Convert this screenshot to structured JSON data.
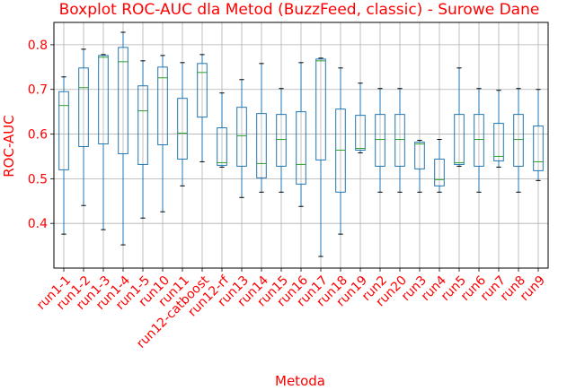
{
  "chart_data": {
    "type": "boxplot",
    "title": "Boxplot ROC-AUC dla Metod (BuzzFeed, classic) - Surowe Dane",
    "xlabel": "Metoda",
    "ylabel": "ROC-AUC",
    "ylim": [
      0.3,
      0.85
    ],
    "yticks": [
      0.4,
      0.5,
      0.6,
      0.7,
      0.8
    ],
    "grid": true,
    "colors": {
      "box": "#1f77b4",
      "median": "#2ca02c",
      "whisker": "#1f77b4",
      "cap": "#000000",
      "text": "#ff0000",
      "grid": "#b0b0b0"
    },
    "categories": [
      "run1-1",
      "run1-2",
      "run1-3",
      "run1-4",
      "run1-5",
      "run10",
      "run11",
      "run12-catboost",
      "run12-rf",
      "run13",
      "run14",
      "run15",
      "run16",
      "run17",
      "run18",
      "run19",
      "run2",
      "run20",
      "run3",
      "run4",
      "run5",
      "run6",
      "run7",
      "run8",
      "run9"
    ],
    "boxes": [
      {
        "whislo": 0.376,
        "q1": 0.52,
        "med": 0.664,
        "q3": 0.695,
        "whishi": 0.728
      },
      {
        "whislo": 0.44,
        "q1": 0.572,
        "med": 0.704,
        "q3": 0.748,
        "whishi": 0.79
      },
      {
        "whislo": 0.386,
        "q1": 0.578,
        "med": 0.772,
        "q3": 0.776,
        "whishi": 0.778
      },
      {
        "whislo": 0.352,
        "q1": 0.556,
        "med": 0.762,
        "q3": 0.794,
        "whishi": 0.828
      },
      {
        "whislo": 0.412,
        "q1": 0.532,
        "med": 0.652,
        "q3": 0.708,
        "whishi": 0.764
      },
      {
        "whislo": 0.426,
        "q1": 0.576,
        "med": 0.726,
        "q3": 0.75,
        "whishi": 0.776
      },
      {
        "whislo": 0.484,
        "q1": 0.544,
        "med": 0.602,
        "q3": 0.68,
        "whishi": 0.76
      },
      {
        "whislo": 0.538,
        "q1": 0.638,
        "med": 0.738,
        "q3": 0.758,
        "whishi": 0.778
      },
      {
        "whislo": 0.526,
        "q1": 0.53,
        "med": 0.536,
        "q3": 0.614,
        "whishi": 0.692
      },
      {
        "whislo": 0.458,
        "q1": 0.528,
        "med": 0.596,
        "q3": 0.66,
        "whishi": 0.722
      },
      {
        "whislo": 0.47,
        "q1": 0.502,
        "med": 0.534,
        "q3": 0.646,
        "whishi": 0.758
      },
      {
        "whislo": 0.47,
        "q1": 0.528,
        "med": 0.588,
        "q3": 0.644,
        "whishi": 0.702
      },
      {
        "whislo": 0.438,
        "q1": 0.488,
        "med": 0.532,
        "q3": 0.65,
        "whishi": 0.76
      },
      {
        "whislo": 0.326,
        "q1": 0.542,
        "med": 0.764,
        "q3": 0.768,
        "whishi": 0.77
      },
      {
        "whislo": 0.376,
        "q1": 0.47,
        "med": 0.564,
        "q3": 0.656,
        "whishi": 0.748
      },
      {
        "whislo": 0.558,
        "q1": 0.564,
        "med": 0.568,
        "q3": 0.642,
        "whishi": 0.714
      },
      {
        "whislo": 0.47,
        "q1": 0.528,
        "med": 0.588,
        "q3": 0.644,
        "whishi": 0.702
      },
      {
        "whislo": 0.47,
        "q1": 0.528,
        "med": 0.588,
        "q3": 0.644,
        "whishi": 0.702
      },
      {
        "whislo": 0.47,
        "q1": 0.522,
        "med": 0.578,
        "q3": 0.582,
        "whishi": 0.586
      },
      {
        "whislo": 0.47,
        "q1": 0.484,
        "med": 0.498,
        "q3": 0.544,
        "whishi": 0.588
      },
      {
        "whislo": 0.528,
        "q1": 0.532,
        "med": 0.536,
        "q3": 0.644,
        "whishi": 0.748
      },
      {
        "whislo": 0.47,
        "q1": 0.528,
        "med": 0.588,
        "q3": 0.644,
        "whishi": 0.702
      },
      {
        "whislo": 0.526,
        "q1": 0.54,
        "med": 0.55,
        "q3": 0.624,
        "whishi": 0.698
      },
      {
        "whislo": 0.47,
        "q1": 0.528,
        "med": 0.588,
        "q3": 0.644,
        "whishi": 0.702
      },
      {
        "whislo": 0.496,
        "q1": 0.518,
        "med": 0.538,
        "q3": 0.618,
        "whishi": 0.7
      }
    ]
  }
}
